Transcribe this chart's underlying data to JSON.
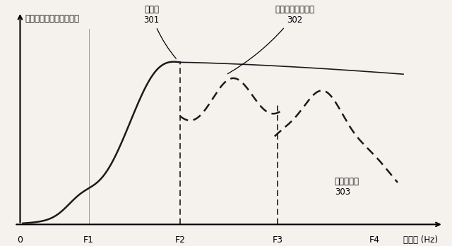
{
  "ylabel": "スペクトルエンベロープ",
  "xlabel": "周波数 (Hz)",
  "x_tick_labels": [
    "0",
    "F1",
    "F2",
    "F3",
    "F4"
  ],
  "label_301": "低帯域\n301",
  "label_302": "生成された高帯域\n302",
  "label_303": "元の高帯域\n303",
  "bg_color": "#f5f2ee",
  "curve_color": "#1a1a1a",
  "figsize": [
    6.4,
    3.49
  ],
  "dpi": 100
}
